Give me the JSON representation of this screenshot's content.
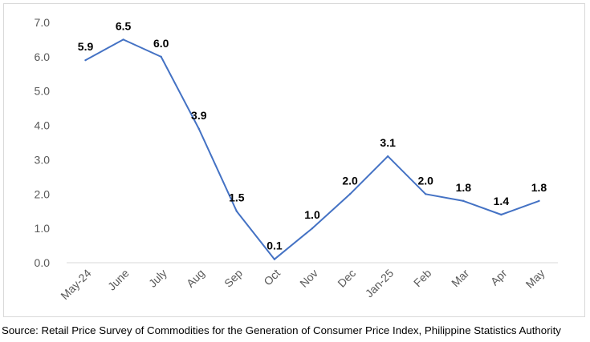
{
  "chart_data": {
    "type": "line",
    "categories": [
      "May-24",
      "June",
      "July",
      "Aug",
      "Sep",
      "Oct",
      "Nov",
      "Dec",
      "Jan-25",
      "Feb",
      "Mar",
      "Apr",
      "May"
    ],
    "series": [
      {
        "values": [
          5.9,
          6.5,
          6.0,
          3.9,
          1.5,
          0.1,
          1.0,
          2.0,
          3.1,
          2.0,
          1.8,
          1.4,
          1.8
        ],
        "labels": [
          "5.9",
          "6.5",
          "6.0",
          "3.9",
          "1.5",
          "0.1",
          "1.0",
          "2.0",
          "3.1",
          "2.0",
          "1.8",
          "1.4",
          "1.8"
        ]
      }
    ],
    "ylim": [
      0,
      7
    ],
    "yticks": [
      "0.0",
      "1.0",
      "2.0",
      "3.0",
      "4.0",
      "5.0",
      "6.0",
      "7.0"
    ],
    "grid": false,
    "legend": "none",
    "line_color": "#4472c4"
  },
  "source": "Source: Retail Price Survey of Commodities for the Generation of Consumer Price Index, Philippine Statistics Authority"
}
